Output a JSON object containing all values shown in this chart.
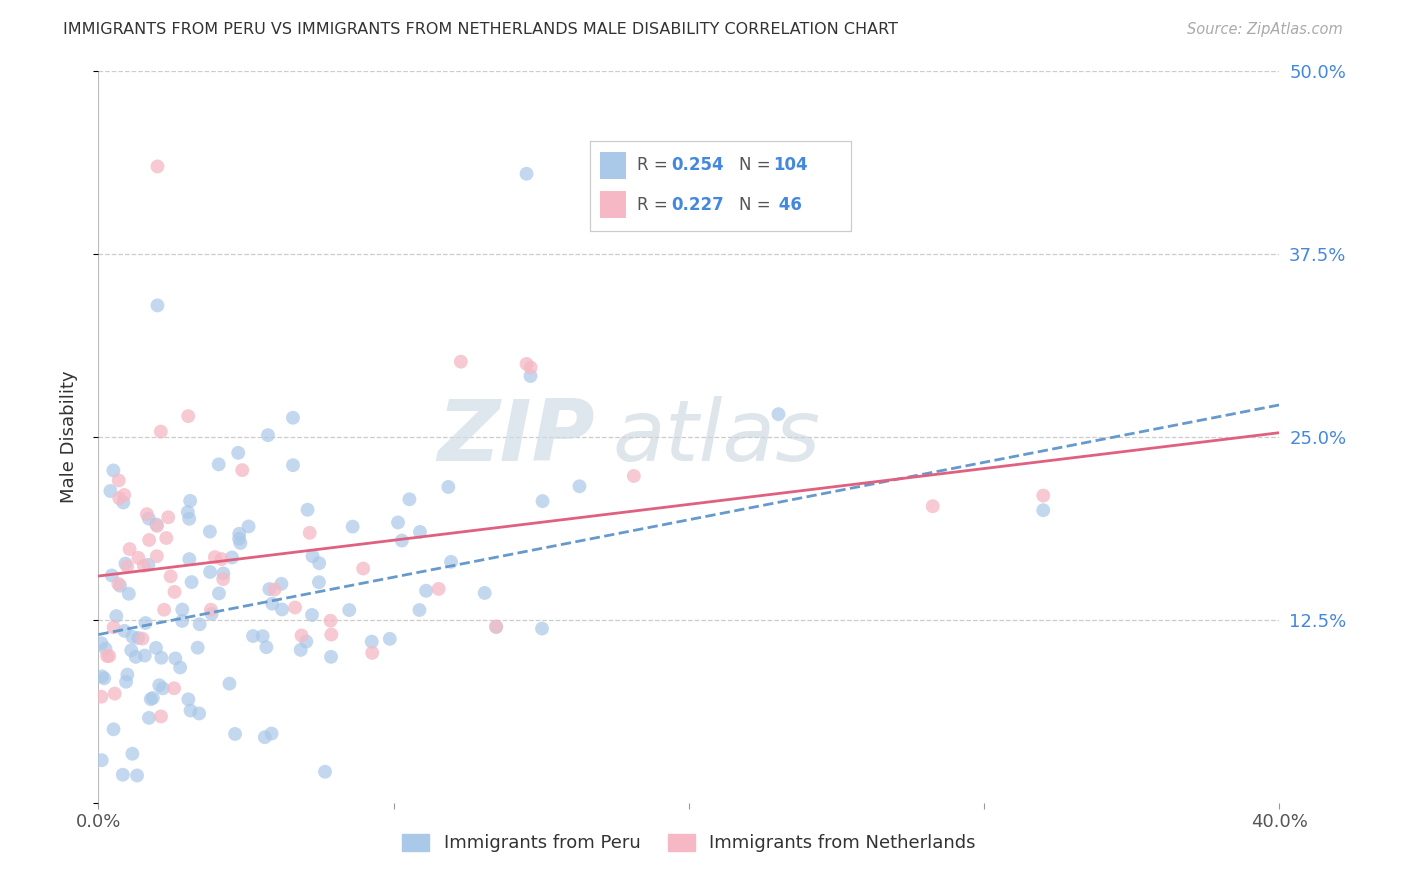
{
  "title": "IMMIGRANTS FROM PERU VS IMMIGRANTS FROM NETHERLANDS MALE DISABILITY CORRELATION CHART",
  "source": "Source: ZipAtlas.com",
  "ylabel": "Male Disability",
  "xlim": [
    0.0,
    0.4
  ],
  "ylim": [
    0.0,
    0.5
  ],
  "ytick_vals": [
    0.0,
    0.125,
    0.25,
    0.375,
    0.5
  ],
  "ytick_labels": [
    "",
    "12.5%",
    "25.0%",
    "37.5%",
    "50.0%"
  ],
  "xtick_vals": [
    0.0,
    0.1,
    0.2,
    0.3,
    0.4
  ],
  "xtick_labels": [
    "0.0%",
    "",
    "",
    "",
    "40.0%"
  ],
  "color_peru": "#aac8e8",
  "color_netherlands": "#f5b8c4",
  "trendline_peru_color": "#6699cc",
  "trendline_netherlands_color": "#e06080",
  "watermark_zip": "ZIP",
  "watermark_atlas": "atlas",
  "legend_r1": "0.254",
  "legend_n1": "104",
  "legend_r2": "0.227",
  "legend_n2": " 46",
  "peru_seed": 12345,
  "neth_seed": 67890,
  "trendline_peru_x0": 0.0,
  "trendline_peru_y0": 0.115,
  "trendline_peru_x1": 0.4,
  "trendline_peru_y1": 0.272,
  "trendline_neth_x0": 0.0,
  "trendline_neth_y0": 0.155,
  "trendline_neth_x1": 0.4,
  "trendline_neth_y1": 0.253
}
